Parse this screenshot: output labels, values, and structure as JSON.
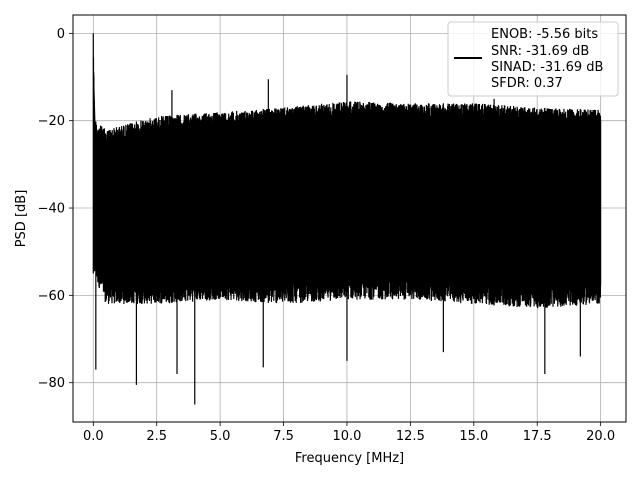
{
  "chart_data": {
    "type": "line",
    "xlabel": "Frequency [MHz]",
    "ylabel": "PSD [dB]",
    "xlim": [
      -0.8,
      21.0
    ],
    "ylim": [
      -89.0,
      4.2
    ],
    "xticks": [
      0.0,
      2.5,
      5.0,
      7.5,
      10.0,
      12.5,
      15.0,
      17.5,
      20.0
    ],
    "xtick_labels": [
      "0.0",
      "2.5",
      "5.0",
      "7.5",
      "10.0",
      "12.5",
      "15.0",
      "17.5",
      "20.0"
    ],
    "yticks": [
      0,
      -20,
      -40,
      -60,
      -80
    ],
    "ytick_labels": [
      "0",
      "−20",
      "−40",
      "−60",
      "−80"
    ],
    "grid": true,
    "legend_position": "top-right",
    "series": [
      {
        "color": "#000000",
        "x_range": [
          0.0,
          20.0
        ],
        "upper_envelope": [
          [
            0.0,
            0.0
          ],
          [
            0.05,
            -20
          ],
          [
            0.5,
            -22
          ],
          [
            2.5,
            -19
          ],
          [
            5.0,
            -18
          ],
          [
            7.5,
            -17
          ],
          [
            10.0,
            -15.5
          ],
          [
            12.5,
            -16
          ],
          [
            15.0,
            -16
          ],
          [
            17.5,
            -17
          ],
          [
            20.0,
            -17.5
          ]
        ],
        "lower_envelope": [
          [
            0.0,
            -55
          ],
          [
            0.5,
            -62
          ],
          [
            2.5,
            -62
          ],
          [
            5.0,
            -61
          ],
          [
            7.5,
            -62
          ],
          [
            10.0,
            -61
          ],
          [
            12.5,
            -61
          ],
          [
            15.0,
            -62
          ],
          [
            17.5,
            -63
          ],
          [
            20.0,
            -62
          ]
        ],
        "peaks": [
          [
            0.0,
            0.0
          ],
          [
            3.1,
            -13
          ],
          [
            6.9,
            -10.5
          ],
          [
            10.0,
            -9.5
          ],
          [
            15.8,
            -15
          ]
        ],
        "dips": [
          [
            0.1,
            -77
          ],
          [
            1.7,
            -80.5
          ],
          [
            3.3,
            -78
          ],
          [
            4.0,
            -85
          ],
          [
            6.7,
            -76.5
          ],
          [
            10.0,
            -75
          ],
          [
            13.8,
            -73
          ],
          [
            17.8,
            -78
          ],
          [
            19.2,
            -74
          ]
        ]
      }
    ],
    "legend": {
      "line_color": "#000000",
      "lines": [
        "ENOB: -5.56 bits",
        "SNR: -31.69 dB",
        "SINAD: -31.69 dB",
        "SFDR: 0.37"
      ]
    }
  }
}
